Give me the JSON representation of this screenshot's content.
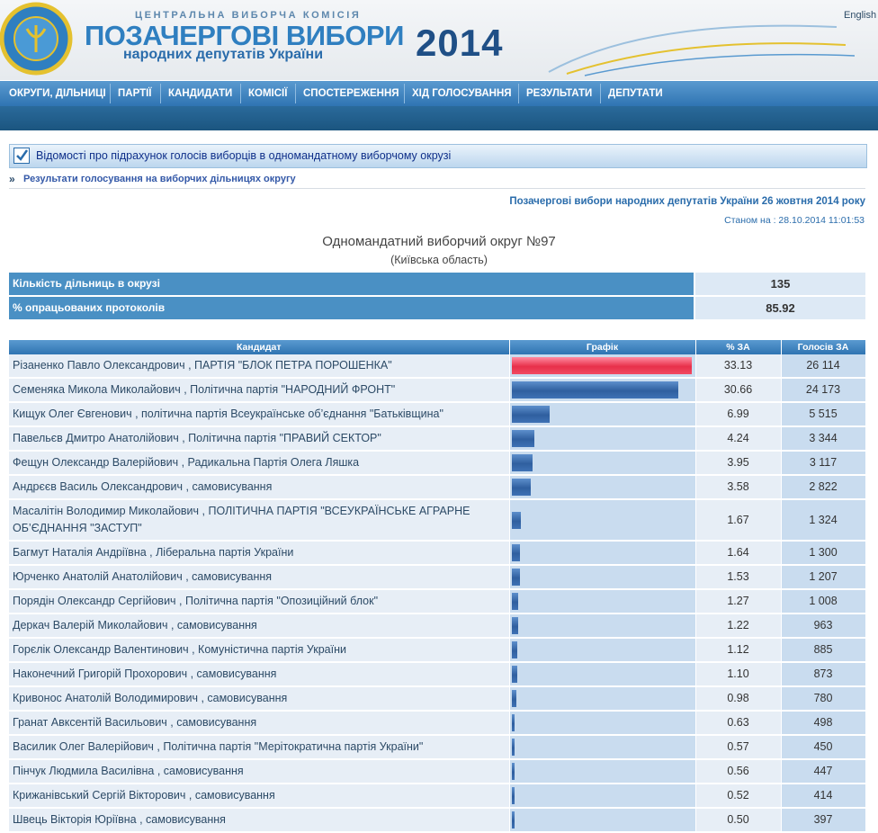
{
  "header": {
    "commission": "ЦЕНТРАЛЬНА ВИБОРЧА КОМІСІЯ",
    "title": "ПОЗАЧЕРГОВІ ВИБОРИ",
    "subtitle": "народних депутатів України",
    "year": "2014",
    "language": "English"
  },
  "nav": [
    "ОКРУГИ, ДІЛЬНИЦІ",
    "ПАРТІЇ",
    "КАНДИДАТИ",
    "КОМІСІЇ",
    "СПОСТЕРЕЖЕННЯ",
    "ХІД ГОЛОСУВАННЯ",
    "РЕЗУЛЬТАТИ",
    "ДЕПУТАТИ"
  ],
  "panel": {
    "title": "Відомості про підрахунок голосів виборців в одномандатному виборчому окрузі",
    "link_marker": "»",
    "link": "Результати голосування на виборчих дільницях округу"
  },
  "election": "Позачергові вибори народних депутатів України 26 жовтня 2014 року",
  "status": "Станом на : 28.10.2014 11:01:53",
  "district": {
    "title": "Одномандатний виборчий округ №97",
    "region": "(Київська область)"
  },
  "summary": [
    {
      "label": "Кількість дільниць в окрузі",
      "value": 135
    },
    {
      "label": "% опрацьованих протоколів",
      "value": 85.92
    }
  ],
  "results": {
    "columns": [
      "Кандидат",
      "Графік",
      "% ЗА",
      "Голосів ЗА"
    ],
    "candidates": [
      "Різаненко Павло Олександрович , ПАРТІЯ \"БЛОК ПЕТРА ПОРОШЕНКА\"",
      "Семеняка Микола Миколайович , Політична партія \"НАРОДНИЙ ФРОНТ\"",
      "Кищук Олег Євгенович , політична партія Всеукраїнське об’єднання \"Батьківщина\"",
      "Павельєв Дмитро Анатолійович , Політична партія \"ПРАВИЙ СЕКТОР\"",
      "Фещун Олександр Валерійович , Радикальна Партія Олега Ляшка",
      "Андрєєв Василь Олександрович , самовисування",
      "Масалітін Володимир Миколайович , ПОЛІТИЧНА ПАРТІЯ \"ВСЕУКРАЇНСЬКЕ АГРАРНЕ ОБ’ЄДНАННЯ \"ЗАСТУП\"",
      "Багмут Наталія Андріївна , Ліберальна партія України",
      "Юрченко Анатолій Анатолійович , самовисування",
      "Порядін Олександр Сергійович , Політична партія \"Опозиційний блок\"",
      "Деркач Валерій Миколайович , самовисування",
      "Горєлік Олександр Валентинович , Комуністична партія України",
      "Наконечний Григорій Прохорович , самовисування",
      "Кривонос Анатолій Володимирович , самовисування",
      "Гранат Авксентій Васильович , самовисування",
      "Василик Олег Валерійович , Політична партія \"Мерітократична партія України\"",
      "Пінчук Людмила Василівна , самовисування",
      "Крижанівський Сергій Вікторович , самовисування",
      "Швець Вікторія Юріївна , самовисування"
    ],
    "values": [
      33.13,
      30.66,
      6.99,
      4.24,
      3.95,
      3.58,
      1.67,
      1.64,
      1.53,
      1.27,
      1.22,
      1.12,
      1.1,
      0.98,
      0.63,
      0.57,
      0.56,
      0.52,
      0.5
    ],
    "value_labels": [
      "33.13",
      "30.66",
      "6.99",
      "4.24",
      "3.95",
      "3.58",
      "1.67",
      "1.64",
      "1.53",
      "1.27",
      "1.22",
      "1.12",
      "1.10",
      "0.98",
      "0.63",
      "0.57",
      "0.56",
      "0.52",
      "0.50"
    ],
    "votes": [
      "26 114",
      "24 173",
      "5 515",
      "3 344",
      "3 117",
      "2 822",
      "1 324",
      "1 300",
      "1 207",
      "1 008",
      "963",
      "885",
      "873",
      "780",
      "498",
      "450",
      "447",
      "414",
      "397"
    ]
  }
}
